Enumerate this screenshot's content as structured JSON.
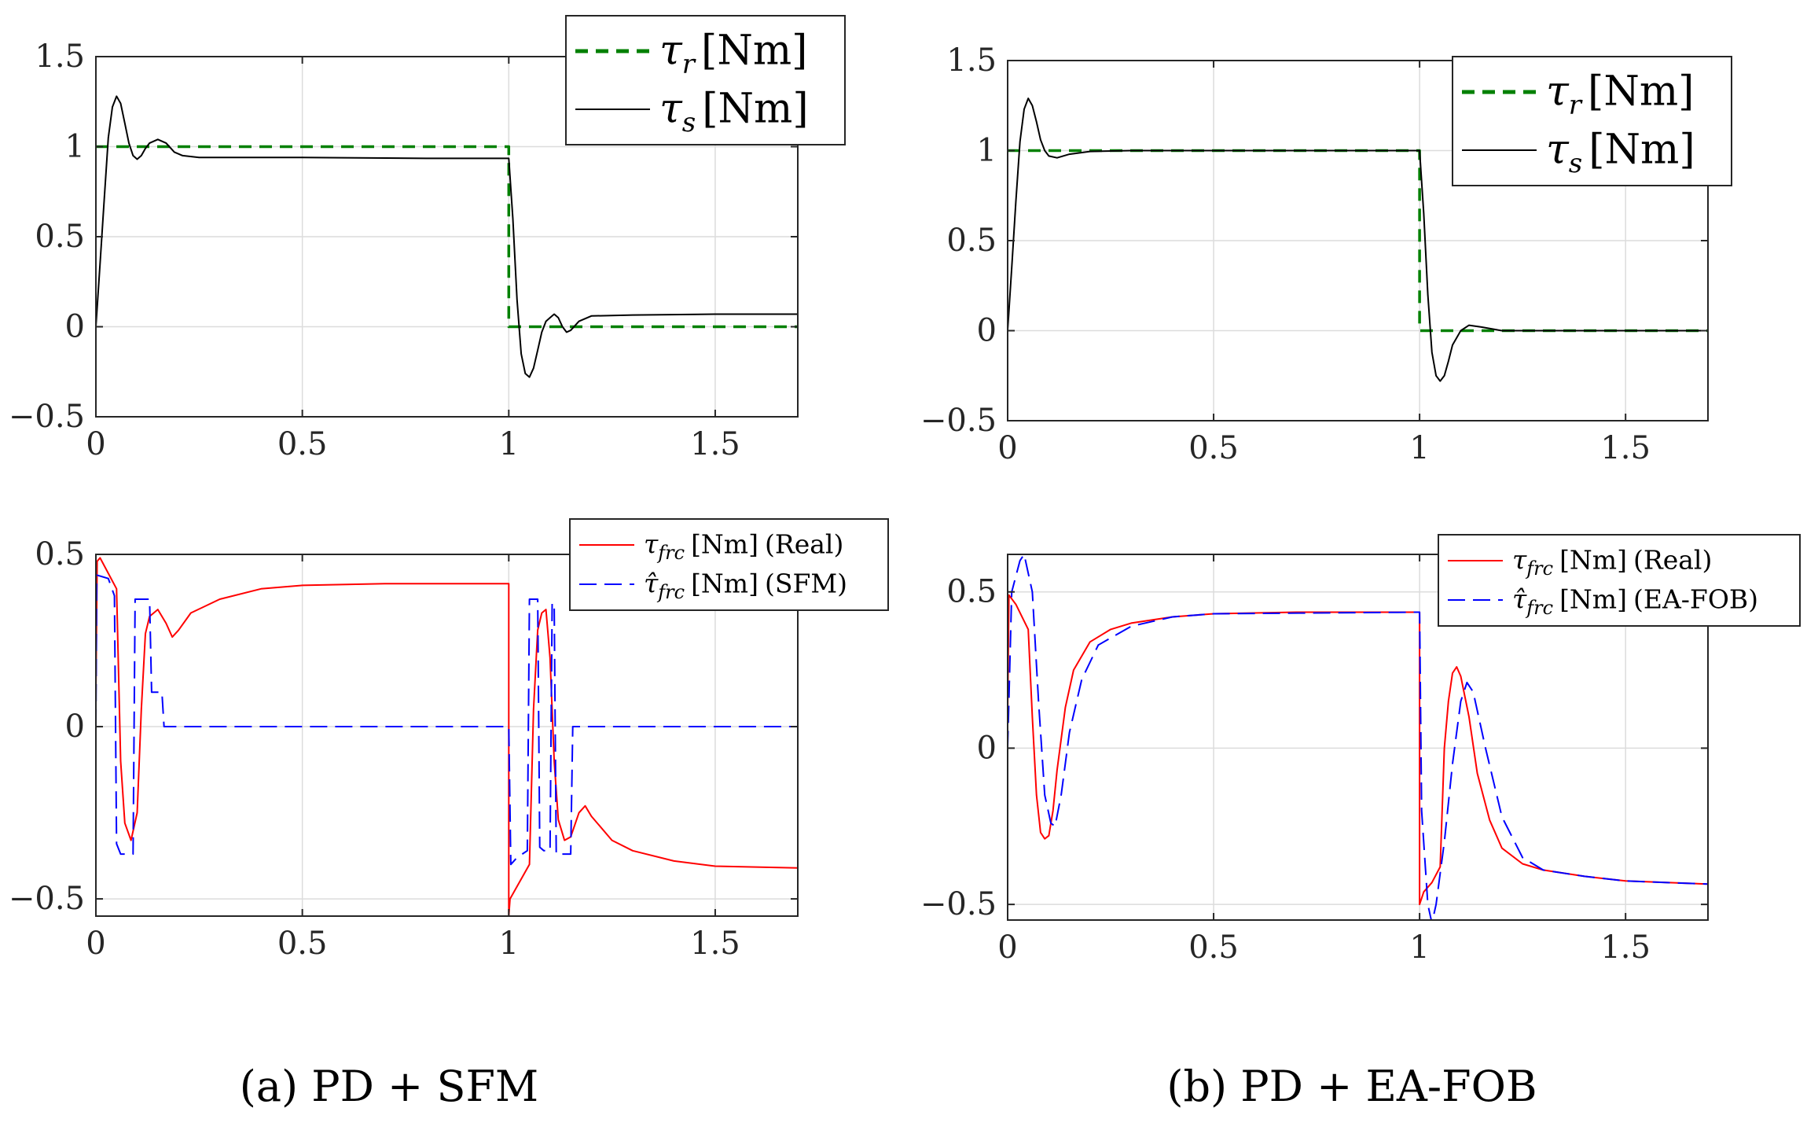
{
  "figure": {
    "captions": {
      "a": "(a) PD + SFM",
      "b": "(b) PD + EA-FOB"
    }
  },
  "colors": {
    "reference": "#008000",
    "measured": "#000000",
    "real": "#ff0000",
    "estimate": "#0000ff",
    "grid": "#dcdcdc",
    "axis": "#262626"
  },
  "chart_data": [
    {
      "id": "a-top",
      "type": "line",
      "xlim": [
        0,
        1.7
      ],
      "ylim": [
        -0.5,
        1.5
      ],
      "xticks": [
        0,
        0.5,
        1,
        1.5
      ],
      "xtick_labels": [
        "0",
        "0.5",
        "1",
        "1.5"
      ],
      "yticks": [
        -0.5,
        0,
        0.5,
        1,
        1.5
      ],
      "ytick_labels": [
        "−0.5",
        "0",
        "0.5",
        "1",
        "1.5"
      ],
      "grid": true,
      "legend_position": "top-right (outside top edge)",
      "series": [
        {
          "name": "τr [Nm]",
          "label": {
            "sym": "τ",
            "sub": "r",
            "unit": "[Nm]",
            "note": ""
          },
          "style": "dash-thick",
          "color": "#008000",
          "points": [
            [
              0,
              1
            ],
            [
              1.0,
              1
            ],
            [
              1.0,
              0
            ],
            [
              1.7,
              0
            ]
          ]
        },
        {
          "name": "τs [Nm]",
          "label": {
            "sym": "τ",
            "sub": "s",
            "unit": "[Nm]",
            "note": ""
          },
          "style": "solid",
          "color": "#000000",
          "points": [
            [
              0,
              0
            ],
            [
              0.01,
              0.35
            ],
            [
              0.02,
              0.7
            ],
            [
              0.03,
              1.05
            ],
            [
              0.04,
              1.22
            ],
            [
              0.05,
              1.28
            ],
            [
              0.06,
              1.24
            ],
            [
              0.07,
              1.13
            ],
            [
              0.08,
              1.02
            ],
            [
              0.09,
              0.95
            ],
            [
              0.1,
              0.93
            ],
            [
              0.11,
              0.95
            ],
            [
              0.12,
              0.99
            ],
            [
              0.13,
              1.02
            ],
            [
              0.15,
              1.04
            ],
            [
              0.17,
              1.02
            ],
            [
              0.19,
              0.97
            ],
            [
              0.21,
              0.95
            ],
            [
              0.25,
              0.94
            ],
            [
              0.5,
              0.94
            ],
            [
              0.8,
              0.935
            ],
            [
              1.0,
              0.935
            ],
            [
              1.01,
              0.6
            ],
            [
              1.02,
              0.15
            ],
            [
              1.03,
              -0.15
            ],
            [
              1.04,
              -0.26
            ],
            [
              1.05,
              -0.28
            ],
            [
              1.06,
              -0.23
            ],
            [
              1.07,
              -0.13
            ],
            [
              1.08,
              -0.03
            ],
            [
              1.09,
              0.03
            ],
            [
              1.1,
              0.05
            ],
            [
              1.11,
              0.07
            ],
            [
              1.12,
              0.05
            ],
            [
              1.13,
              0.0
            ],
            [
              1.14,
              -0.03
            ],
            [
              1.15,
              -0.02
            ],
            [
              1.17,
              0.03
            ],
            [
              1.2,
              0.06
            ],
            [
              1.3,
              0.065
            ],
            [
              1.5,
              0.07
            ],
            [
              1.7,
              0.07
            ]
          ]
        }
      ]
    },
    {
      "id": "b-top",
      "type": "line",
      "xlim": [
        0,
        1.7
      ],
      "ylim": [
        -0.5,
        1.5
      ],
      "xticks": [
        0,
        0.5,
        1,
        1.5
      ],
      "xtick_labels": [
        "0",
        "0.5",
        "1",
        "1.5"
      ],
      "yticks": [
        -0.5,
        0,
        0.5,
        1,
        1.5
      ],
      "ytick_labels": [
        "−0.5",
        "0",
        "0.5",
        "1",
        "1.5"
      ],
      "grid": true,
      "legend_position": "top-right",
      "series": [
        {
          "name": "τr [Nm]",
          "label": {
            "sym": "τ",
            "sub": "r",
            "unit": "[Nm]",
            "note": ""
          },
          "style": "dash-thick",
          "color": "#008000",
          "points": [
            [
              0,
              1
            ],
            [
              1.0,
              1
            ],
            [
              1.0,
              0
            ],
            [
              1.7,
              0
            ]
          ]
        },
        {
          "name": "τs [Nm]",
          "label": {
            "sym": "τ",
            "sub": "s",
            "unit": "[Nm]",
            "note": ""
          },
          "style": "solid",
          "color": "#000000",
          "points": [
            [
              0,
              0
            ],
            [
              0.01,
              0.35
            ],
            [
              0.02,
              0.72
            ],
            [
              0.03,
              1.05
            ],
            [
              0.04,
              1.23
            ],
            [
              0.05,
              1.29
            ],
            [
              0.06,
              1.25
            ],
            [
              0.07,
              1.16
            ],
            [
              0.08,
              1.06
            ],
            [
              0.09,
              1.0
            ],
            [
              0.1,
              0.97
            ],
            [
              0.12,
              0.96
            ],
            [
              0.15,
              0.98
            ],
            [
              0.2,
              0.995
            ],
            [
              0.3,
              1.0
            ],
            [
              1.0,
              1.0
            ],
            [
              1.01,
              0.65
            ],
            [
              1.02,
              0.2
            ],
            [
              1.03,
              -0.12
            ],
            [
              1.04,
              -0.25
            ],
            [
              1.05,
              -0.28
            ],
            [
              1.06,
              -0.25
            ],
            [
              1.07,
              -0.17
            ],
            [
              1.08,
              -0.08
            ],
            [
              1.1,
              0.0
            ],
            [
              1.12,
              0.03
            ],
            [
              1.15,
              0.02
            ],
            [
              1.2,
              0.0
            ],
            [
              1.7,
              0.0
            ]
          ]
        }
      ]
    },
    {
      "id": "a-bottom",
      "type": "line",
      "xlim": [
        0,
        1.7
      ],
      "ylim": [
        -0.55,
        0.5
      ],
      "xticks": [
        0,
        0.5,
        1,
        1.5
      ],
      "xtick_labels": [
        "0",
        "0.5",
        "1",
        "1.5"
      ],
      "yticks": [
        -0.5,
        0,
        0.5
      ],
      "ytick_labels": [
        "−0.5",
        "0",
        "0.5"
      ],
      "grid": true,
      "legend_position": "top-right",
      "series": [
        {
          "name": "τfrc [Nm] (Real)",
          "label": {
            "sym": "τ",
            "sub": "frc",
            "unit": "[Nm]",
            "note": "(Real)"
          },
          "style": "solid",
          "color": "#ff0000",
          "points": [
            [
              0,
              0.1
            ],
            [
              0.003,
              0.48
            ],
            [
              0.01,
              0.49
            ],
            [
              0.05,
              0.4
            ],
            [
              0.06,
              -0.1
            ],
            [
              0.07,
              -0.28
            ],
            [
              0.085,
              -0.33
            ],
            [
              0.1,
              -0.25
            ],
            [
              0.11,
              0.05
            ],
            [
              0.12,
              0.27
            ],
            [
              0.13,
              0.32
            ],
            [
              0.15,
              0.34
            ],
            [
              0.17,
              0.3
            ],
            [
              0.185,
              0.26
            ],
            [
              0.2,
              0.28
            ],
            [
              0.23,
              0.33
            ],
            [
              0.3,
              0.37
            ],
            [
              0.4,
              0.4
            ],
            [
              0.5,
              0.41
            ],
            [
              0.7,
              0.415
            ],
            [
              1.0,
              0.415
            ],
            [
              1.0,
              -0.55
            ],
            [
              1.003,
              -0.5
            ],
            [
              1.05,
              -0.4
            ],
            [
              1.06,
              0.05
            ],
            [
              1.07,
              0.28
            ],
            [
              1.08,
              0.33
            ],
            [
              1.09,
              0.34
            ],
            [
              1.1,
              0.2
            ],
            [
              1.11,
              -0.1
            ],
            [
              1.12,
              -0.27
            ],
            [
              1.135,
              -0.33
            ],
            [
              1.15,
              -0.32
            ],
            [
              1.17,
              -0.25
            ],
            [
              1.185,
              -0.23
            ],
            [
              1.2,
              -0.26
            ],
            [
              1.25,
              -0.33
            ],
            [
              1.3,
              -0.36
            ],
            [
              1.4,
              -0.39
            ],
            [
              1.5,
              -0.405
            ],
            [
              1.7,
              -0.41
            ]
          ]
        },
        {
          "name": "τ̂frc [Nm] (SFM)",
          "label": {
            "sym": "τ̂",
            "sub": "frc",
            "unit": "[Nm]",
            "note": "(SFM)"
          },
          "style": "dash",
          "color": "#0000ff",
          "points": [
            [
              0,
              0.0
            ],
            [
              0.002,
              0.44
            ],
            [
              0.03,
              0.43
            ],
            [
              0.045,
              0.38
            ],
            [
              0.05,
              -0.34
            ],
            [
              0.06,
              -0.37
            ],
            [
              0.09,
              -0.37
            ],
            [
              0.095,
              0.37
            ],
            [
              0.13,
              0.37
            ],
            [
              0.135,
              0.1
            ],
            [
              0.16,
              0.1
            ],
            [
              0.165,
              0.0
            ],
            [
              1.0,
              0.0
            ],
            [
              1.005,
              -0.4
            ],
            [
              1.02,
              -0.38
            ],
            [
              1.045,
              -0.36
            ],
            [
              1.05,
              0.37
            ],
            [
              1.07,
              0.37
            ],
            [
              1.075,
              -0.35
            ],
            [
              1.085,
              -0.36
            ],
            [
              1.1,
              -0.36
            ],
            [
              1.105,
              0.36
            ],
            [
              1.11,
              0.35
            ],
            [
              1.115,
              -0.37
            ],
            [
              1.15,
              -0.37
            ],
            [
              1.155,
              0.0
            ],
            [
              1.7,
              0.0
            ]
          ]
        }
      ]
    },
    {
      "id": "b-bottom",
      "type": "line",
      "xlim": [
        0,
        1.7
      ],
      "ylim": [
        -0.55,
        0.62
      ],
      "xticks": [
        0,
        0.5,
        1,
        1.5
      ],
      "xtick_labels": [
        "0",
        "0.5",
        "1",
        "1.5"
      ],
      "yticks": [
        -0.5,
        0,
        0.5
      ],
      "ytick_labels": [
        "−0.5",
        "0",
        "0.5"
      ],
      "grid": true,
      "legend_position": "top-right",
      "series": [
        {
          "name": "τfrc [Nm] (Real)",
          "label": {
            "sym": "τ",
            "sub": "frc",
            "unit": "[Nm]",
            "note": "(Real)"
          },
          "style": "solid",
          "color": "#ff0000",
          "points": [
            [
              0,
              0.1
            ],
            [
              0.003,
              0.49
            ],
            [
              0.02,
              0.46
            ],
            [
              0.05,
              0.38
            ],
            [
              0.06,
              0.1
            ],
            [
              0.07,
              -0.15
            ],
            [
              0.08,
              -0.27
            ],
            [
              0.09,
              -0.29
            ],
            [
              0.1,
              -0.28
            ],
            [
              0.11,
              -0.2
            ],
            [
              0.12,
              -0.07
            ],
            [
              0.14,
              0.13
            ],
            [
              0.16,
              0.25
            ],
            [
              0.2,
              0.34
            ],
            [
              0.25,
              0.38
            ],
            [
              0.3,
              0.4
            ],
            [
              0.4,
              0.42
            ],
            [
              0.5,
              0.43
            ],
            [
              0.7,
              0.435
            ],
            [
              1.0,
              0.435
            ],
            [
              1.0,
              -0.5
            ],
            [
              1.01,
              -0.46
            ],
            [
              1.03,
              -0.43
            ],
            [
              1.05,
              -0.38
            ],
            [
              1.06,
              0.0
            ],
            [
              1.07,
              0.15
            ],
            [
              1.08,
              0.24
            ],
            [
              1.09,
              0.26
            ],
            [
              1.1,
              0.23
            ],
            [
              1.12,
              0.1
            ],
            [
              1.14,
              -0.08
            ],
            [
              1.17,
              -0.23
            ],
            [
              1.2,
              -0.32
            ],
            [
              1.25,
              -0.37
            ],
            [
              1.3,
              -0.39
            ],
            [
              1.4,
              -0.41
            ],
            [
              1.5,
              -0.425
            ],
            [
              1.7,
              -0.435
            ]
          ]
        },
        {
          "name": "τ̂frc [Nm] (EA-FOB)",
          "label": {
            "sym": "τ̂",
            "sub": "frc",
            "unit": "[Nm]",
            "note": "(EA-FOB)"
          },
          "style": "dash",
          "color": "#0000ff",
          "points": [
            [
              0,
              0.0
            ],
            [
              0.01,
              0.5
            ],
            [
              0.03,
              0.6
            ],
            [
              0.04,
              0.62
            ],
            [
              0.06,
              0.5
            ],
            [
              0.075,
              0.15
            ],
            [
              0.09,
              -0.15
            ],
            [
              0.105,
              -0.24
            ],
            [
              0.115,
              -0.25
            ],
            [
              0.13,
              -0.15
            ],
            [
              0.15,
              0.05
            ],
            [
              0.18,
              0.22
            ],
            [
              0.22,
              0.33
            ],
            [
              0.3,
              0.39
            ],
            [
              0.4,
              0.42
            ],
            [
              0.5,
              0.43
            ],
            [
              1.0,
              0.435
            ],
            [
              1.005,
              -0.2
            ],
            [
              1.02,
              -0.5
            ],
            [
              1.03,
              -0.56
            ],
            [
              1.04,
              -0.5
            ],
            [
              1.06,
              -0.3
            ],
            [
              1.08,
              -0.05
            ],
            [
              1.1,
              0.15
            ],
            [
              1.115,
              0.21
            ],
            [
              1.13,
              0.18
            ],
            [
              1.16,
              0.0
            ],
            [
              1.2,
              -0.22
            ],
            [
              1.25,
              -0.35
            ],
            [
              1.3,
              -0.39
            ],
            [
              1.4,
              -0.41
            ],
            [
              1.5,
              -0.425
            ],
            [
              1.7,
              -0.435
            ]
          ]
        }
      ]
    }
  ]
}
